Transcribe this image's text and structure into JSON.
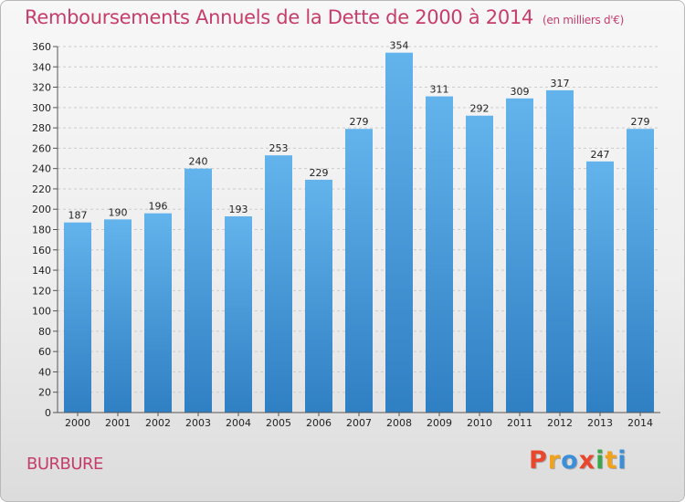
{
  "title": "Remboursements Annuels de la Dette de 2000 à 2014",
  "subtitle": "(en milliers d'€)",
  "commune": "BURBURE",
  "logo": {
    "letters": [
      "P",
      "r",
      "o",
      "x",
      "i",
      "t",
      "i"
    ],
    "colors": [
      "#e8472e",
      "#f0a21b",
      "#3a8fd8",
      "#e8472e",
      "#3aa84a",
      "#f0a21b",
      "#3a8fd8"
    ]
  },
  "colors": {
    "bar_light": "#63b3ec",
    "bar_dark": "#2f7fc3",
    "accent": "#c63d6a"
  },
  "chart_data": {
    "type": "bar",
    "categories": [
      "2000",
      "2001",
      "2002",
      "2003",
      "2004",
      "2005",
      "2006",
      "2007",
      "2008",
      "2009",
      "2010",
      "2011",
      "2012",
      "2013",
      "2014"
    ],
    "values": [
      187,
      190,
      196,
      240,
      193,
      253,
      229,
      279,
      354,
      311,
      292,
      309,
      317,
      247,
      279
    ],
    "title": "Remboursements Annuels de la Dette de 2000 à 2014",
    "xlabel": "",
    "ylabel": "",
    "ylim": [
      0,
      360
    ],
    "yticks": [
      0,
      20,
      40,
      60,
      80,
      100,
      120,
      140,
      160,
      180,
      200,
      220,
      240,
      260,
      280,
      300,
      320,
      340,
      360
    ],
    "grid": true,
    "legend": "none"
  }
}
